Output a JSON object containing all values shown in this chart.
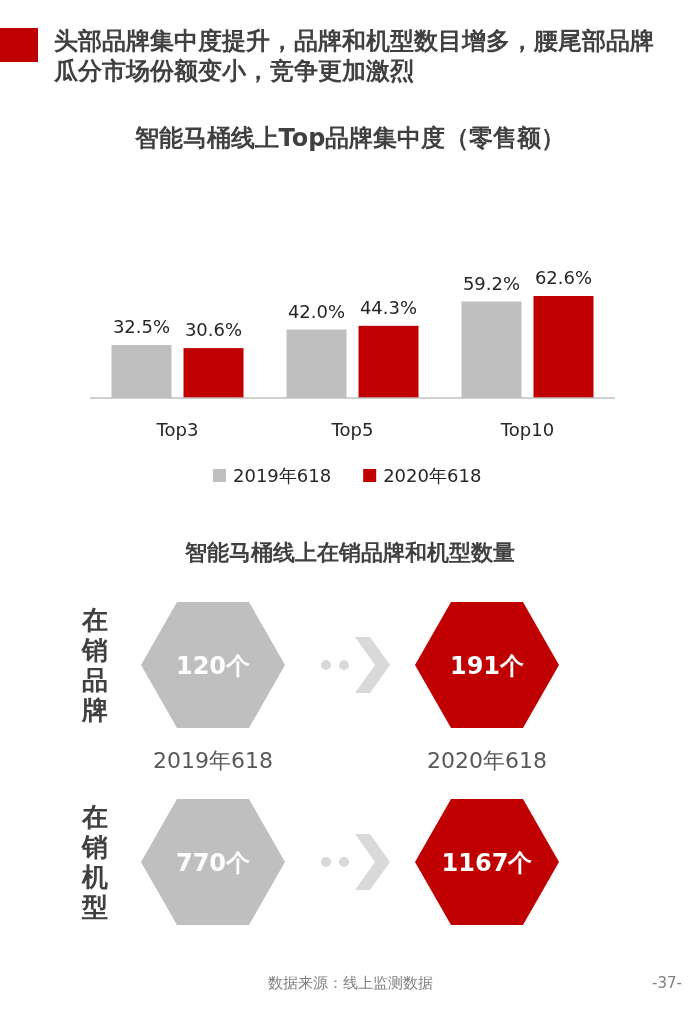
{
  "chart_data": [
    {
      "type": "bar",
      "title": "智能马桶线上Top品牌集中度（零售额）",
      "categories": [
        "Top3",
        "Top5",
        "Top10"
      ],
      "series": [
        {
          "name": "2019年618",
          "color": "#bfbfbf",
          "values": [
            32.5,
            42.0,
            59.2
          ],
          "value_labels": [
            "32.5%",
            "42.0%",
            "59.2%"
          ]
        },
        {
          "name": "2020年618",
          "color": "#c00000",
          "values": [
            30.6,
            44.3,
            62.6
          ],
          "value_labels": [
            "30.6%",
            "44.3%",
            "62.6%"
          ]
        }
      ],
      "legend": "bottom",
      "annotations": [
        "头部品牌集中度提升，品牌和机型数目增多，腰尾部品牌瓜分市场份额变小，竞争更加激烈"
      ]
    },
    {
      "type": "other",
      "title": "智能马桶线上在销品牌和机型数量",
      "categories": [
        "2019年618",
        "2020年618"
      ],
      "y_categories": [
        "在销品牌",
        "在销机型"
      ],
      "cell_labels": [
        [
          "120个",
          "191个"
        ],
        [
          "770个",
          "1167个"
        ]
      ],
      "colors": [
        "#bfbfbf",
        "#c00000"
      ],
      "annotations": [
        "数据来源：线上监测数据",
        "-37-"
      ]
    }
  ]
}
